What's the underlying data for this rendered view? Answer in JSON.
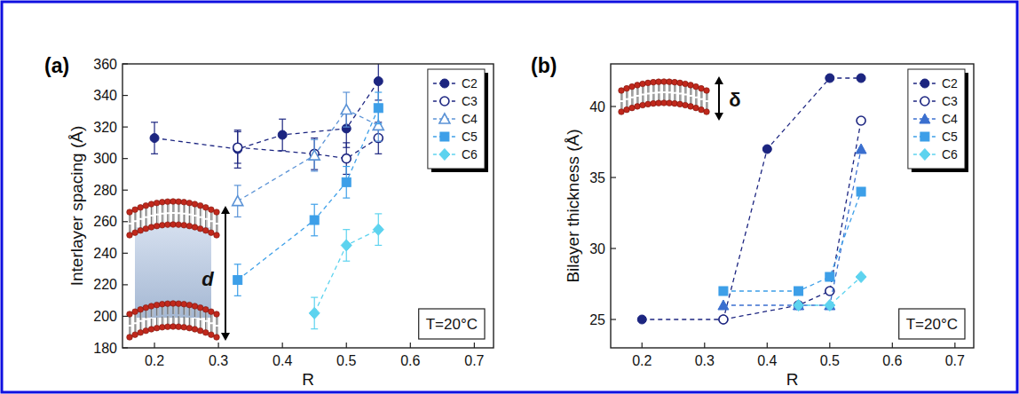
{
  "chart_data": [
    {
      "type": "line",
      "panel_label": "(a)",
      "x_label": "R",
      "y_label": "Interlayer spacing (Å)",
      "xlim": [
        0.15,
        0.73
      ],
      "xticks": [
        0.2,
        0.3,
        0.4,
        0.5,
        0.6,
        0.7
      ],
      "ylim": [
        180,
        360
      ],
      "yticks": [
        180,
        200,
        220,
        240,
        260,
        280,
        300,
        320,
        340,
        360
      ],
      "legend": "upper right",
      "annotations": [
        "T=20°C",
        "d"
      ],
      "series": [
        {
          "name": "C2",
          "color": "#1c2580",
          "marker": "circle",
          "line_style": "dashed",
          "x": [
            0.2,
            0.33,
            0.4,
            0.5,
            0.55
          ],
          "values": [
            313,
            306,
            315,
            319,
            349
          ],
          "errors": [
            10,
            12,
            10,
            12,
            12
          ]
        },
        {
          "name": "C3",
          "color": "#1c2580",
          "marker": "circle-open",
          "line_style": "dashed",
          "x": [
            0.33,
            0.45,
            0.5,
            0.55
          ],
          "values": [
            307,
            303,
            300,
            313
          ],
          "errors": [
            10,
            10,
            10,
            10
          ]
        },
        {
          "name": "C4",
          "color": "#5b93d6",
          "marker": "triangle-open",
          "line_style": "dashed",
          "x": [
            0.33,
            0.45,
            0.5,
            0.55
          ],
          "values": [
            273,
            302,
            331,
            321
          ],
          "errors": [
            10,
            10,
            11,
            10
          ]
        },
        {
          "name": "C5",
          "color": "#3d9fe8",
          "marker": "square",
          "line_style": "dashed",
          "x": [
            0.33,
            0.45,
            0.5,
            0.55
          ],
          "values": [
            223,
            261,
            285,
            332
          ],
          "errors": [
            10,
            10,
            10,
            10
          ]
        },
        {
          "name": "C6",
          "color": "#5dd3ef",
          "marker": "diamond",
          "line_style": "dashed",
          "x": [
            0.45,
            0.5,
            0.55
          ],
          "values": [
            202,
            245,
            255
          ],
          "errors": [
            10,
            10,
            10
          ]
        }
      ]
    },
    {
      "type": "line",
      "panel_label": "(b)",
      "x_label": "R",
      "y_label": "Bilayer thickness (Å)",
      "xlim": [
        0.15,
        0.73
      ],
      "xticks": [
        0.2,
        0.3,
        0.4,
        0.5,
        0.6,
        0.7
      ],
      "ylim": [
        23,
        43
      ],
      "yticks": [
        25,
        30,
        35,
        40
      ],
      "legend": "upper right",
      "annotations": [
        "T=20°C",
        "δ"
      ],
      "series": [
        {
          "name": "C2",
          "color": "#1c2580",
          "marker": "circle",
          "line_style": "dashed",
          "x": [
            0.2,
            0.33,
            0.4,
            0.5,
            0.55
          ],
          "values": [
            25,
            25,
            37,
            42,
            42
          ]
        },
        {
          "name": "C3",
          "color": "#1c2580",
          "marker": "circle-open",
          "line_style": "dashed",
          "x": [
            0.33,
            0.45,
            0.5,
            0.55
          ],
          "values": [
            25,
            26,
            27,
            39
          ]
        },
        {
          "name": "C4",
          "color": "#3a6fcf",
          "marker": "triangle",
          "line_style": "dashed",
          "x": [
            0.33,
            0.45,
            0.5,
            0.55
          ],
          "values": [
            26,
            26,
            26,
            37
          ]
        },
        {
          "name": "C5",
          "color": "#3d9fe8",
          "marker": "square",
          "line_style": "dashed",
          "x": [
            0.33,
            0.45,
            0.5,
            0.55
          ],
          "values": [
            27,
            27,
            28,
            34
          ]
        },
        {
          "name": "C6",
          "color": "#5dd3ef",
          "marker": "diamond",
          "line_style": "dashed",
          "x": [
            0.45,
            0.5,
            0.55
          ],
          "values": [
            26,
            26,
            28
          ]
        }
      ]
    }
  ]
}
